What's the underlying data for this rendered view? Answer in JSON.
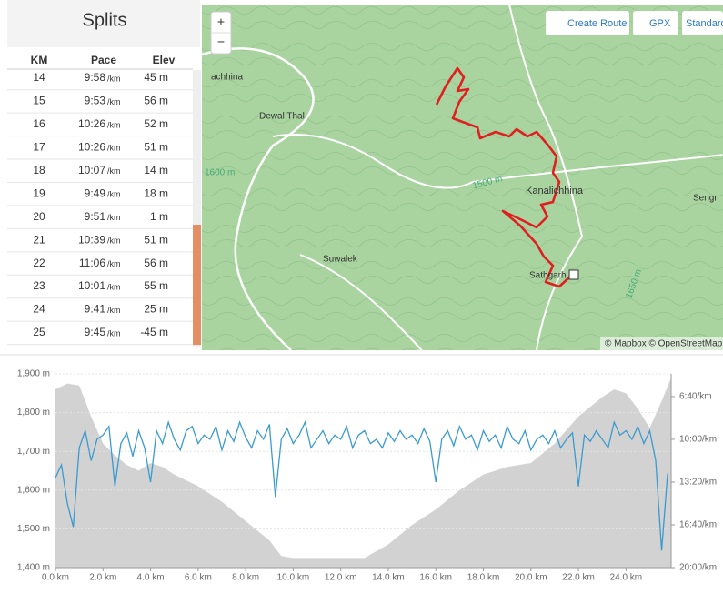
{
  "splits": {
    "title": "Splits",
    "columns": [
      "KM",
      "Pace",
      "Elev"
    ],
    "rows": [
      {
        "km": "14",
        "pace": "9:58",
        "unit": "/km",
        "elev": "45 m"
      },
      {
        "km": "15",
        "pace": "9:53",
        "unit": "/km",
        "elev": "56 m"
      },
      {
        "km": "16",
        "pace": "10:26",
        "unit": "/km",
        "elev": "52 m"
      },
      {
        "km": "17",
        "pace": "10:26",
        "unit": "/km",
        "elev": "51 m"
      },
      {
        "km": "18",
        "pace": "10:07",
        "unit": "/km",
        "elev": "14 m"
      },
      {
        "km": "19",
        "pace": "9:49",
        "unit": "/km",
        "elev": "18 m"
      },
      {
        "km": "20",
        "pace": "9:51",
        "unit": "/km",
        "elev": "1 m"
      },
      {
        "km": "21",
        "pace": "10:39",
        "unit": "/km",
        "elev": "51 m"
      },
      {
        "km": "22",
        "pace": "11:06",
        "unit": "/km",
        "elev": "56 m"
      },
      {
        "km": "23",
        "pace": "10:01",
        "unit": "/km",
        "elev": "55 m"
      },
      {
        "km": "24",
        "pace": "9:41",
        "unit": "/km",
        "elev": "25 m"
      },
      {
        "km": "25",
        "pace": "9:45",
        "unit": "/km",
        "elev": "-45 m"
      }
    ]
  },
  "map": {
    "zoom_in": "+",
    "zoom_out": "−",
    "buttons": [
      "Create Route",
      "GPX",
      "Standard"
    ],
    "labels": [
      "achhina",
      "Dewal Thal",
      "1600 m",
      "1500 m",
      "Kanalichhina",
      "Sengr",
      "Suwalek",
      "Sathgarh",
      "1650 m"
    ],
    "attribution": "© Mapbox © OpenStreetMap"
  },
  "chart_data": {
    "type": "line",
    "xlim": [
      0,
      25.9
    ],
    "xticks": [
      {
        "value": 0,
        "label": "0.0 km"
      },
      {
        "value": 2,
        "label": "2.0 km"
      },
      {
        "value": 4,
        "label": "4.0 km"
      },
      {
        "value": 6,
        "label": "6.0 km"
      },
      {
        "value": 8,
        "label": "8.0 km"
      },
      {
        "value": 10,
        "label": "10.0 km"
      },
      {
        "value": 12,
        "label": "12.0 km"
      },
      {
        "value": 14,
        "label": "14.0 km"
      },
      {
        "value": 16,
        "label": "16.0 km"
      },
      {
        "value": 18,
        "label": "18.0 km"
      },
      {
        "value": 20,
        "label": "20.0 km"
      },
      {
        "value": 22,
        "label": "22.0 km"
      },
      {
        "value": 24,
        "label": "24.0 km"
      }
    ],
    "ylim": [
      1400,
      1900
    ],
    "yticks": [
      {
        "value": 1400,
        "label": "1,400 m"
      },
      {
        "value": 1500,
        "label": "1,500 m"
      },
      {
        "value": 1600,
        "label": "1,600 m"
      },
      {
        "value": 1700,
        "label": "1,700 m"
      },
      {
        "value": 1800,
        "label": "1,800 m"
      },
      {
        "value": 1900,
        "label": "1,900 m"
      }
    ],
    "y2lim": [
      1200,
      294
    ],
    "y2ticks": [
      {
        "value": 400,
        "label": "6:40/km"
      },
      {
        "value": 600,
        "label": "10:00/km"
      },
      {
        "value": 800,
        "label": "13:20/km"
      },
      {
        "value": 1000,
        "label": "16:40/km"
      },
      {
        "value": 1200,
        "label": "20:00/km"
      }
    ],
    "series": [
      {
        "kind": "area",
        "color": "#d2d2d2",
        "x": [
          0,
          0.5,
          1,
          1.5,
          2,
          2.5,
          3,
          3.5,
          4,
          4.5,
          5,
          6,
          7,
          8,
          9,
          9.5,
          10,
          11,
          12,
          13,
          14,
          15,
          16,
          17,
          18,
          19,
          20,
          21,
          22,
          23,
          23.5,
          24,
          24.5,
          25,
          25.5,
          25.9
        ],
        "values": [
          1860,
          1875,
          1870,
          1790,
          1720,
          1690,
          1665,
          1650,
          1670,
          1660,
          1640,
          1610,
          1570,
          1520,
          1470,
          1430,
          1425,
          1425,
          1425,
          1425,
          1460,
          1510,
          1550,
          1600,
          1640,
          1660,
          1670,
          1720,
          1790,
          1840,
          1860,
          1850,
          1810,
          1760,
          1830,
          1890
        ]
      },
      {
        "kind": "line",
        "axis": "y2",
        "color": "#3a9bd0",
        "x": [
          0,
          0.25,
          0.5,
          0.75,
          1,
          1.25,
          1.5,
          1.75,
          2,
          2.25,
          2.5,
          2.75,
          3,
          3.25,
          3.5,
          3.75,
          4,
          4.25,
          4.5,
          4.75,
          5,
          5.25,
          5.5,
          5.75,
          6,
          6.25,
          6.5,
          6.75,
          7,
          7.25,
          7.5,
          7.75,
          8,
          8.25,
          8.5,
          8.75,
          9,
          9.25,
          9.5,
          9.75,
          10,
          10.25,
          10.5,
          10.75,
          11,
          11.25,
          11.5,
          11.75,
          12,
          12.25,
          12.5,
          12.75,
          13,
          13.25,
          13.5,
          13.75,
          14,
          14.25,
          14.5,
          14.75,
          15,
          15.25,
          15.5,
          15.75,
          16,
          16.25,
          16.5,
          16.75,
          17,
          17.25,
          17.5,
          17.75,
          18,
          18.25,
          18.5,
          18.75,
          19,
          19.25,
          19.5,
          19.75,
          20,
          20.25,
          20.5,
          20.75,
          21,
          21.25,
          21.5,
          21.75,
          22,
          22.25,
          22.5,
          22.75,
          23,
          23.25,
          23.5,
          23.75,
          24,
          24.25,
          24.5,
          24.75,
          25,
          25.25,
          25.5,
          25.75
        ],
        "values": [
          780,
          720,
          900,
          1010,
          640,
          560,
          700,
          600,
          580,
          540,
          820,
          620,
          570,
          680,
          560,
          640,
          800,
          560,
          620,
          520,
          600,
          650,
          560,
          540,
          620,
          580,
          600,
          540,
          650,
          560,
          610,
          520,
          590,
          640,
          560,
          600,
          530,
          870,
          600,
          550,
          620,
          580,
          520,
          640,
          600,
          560,
          620,
          580,
          600,
          540,
          640,
          580,
          560,
          620,
          600,
          640,
          570,
          610,
          560,
          600,
          580,
          620,
          550,
          610,
          800,
          600,
          560,
          630,
          540,
          600,
          580,
          650,
          560,
          610,
          580,
          640,
          540,
          600,
          620,
          560,
          650,
          600,
          580,
          620,
          560,
          640,
          600,
          570,
          820,
          580,
          610,
          560,
          600,
          640,
          520,
          580,
          560,
          600,
          540,
          620,
          560,
          700,
          1120,
          760
        ]
      }
    ]
  }
}
